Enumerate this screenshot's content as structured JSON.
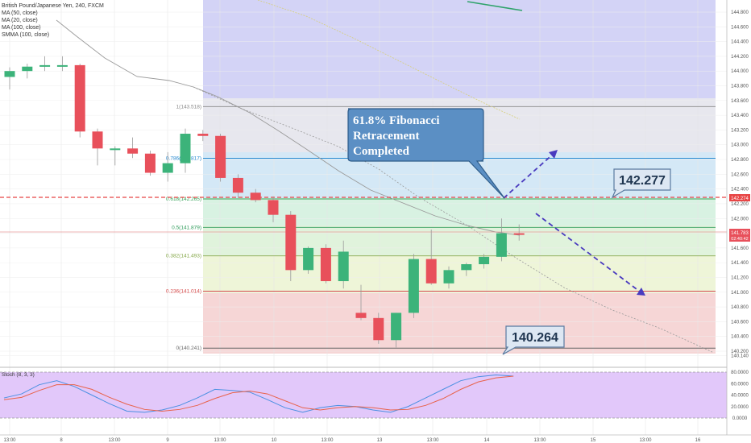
{
  "legend": {
    "symbol": "British Pound/Japanese Yen, 240, FXCM",
    "ma50": "MA (50, close)",
    "ma20": "MA (20, close)",
    "ma100": "MA (100, close)",
    "smma": "SMMA (100, close)"
  },
  "stoch_label": "Stoch (8, 3, 3)",
  "callout": {
    "line1": "61.8% Fibonacci",
    "line2": "Retracement",
    "line3": "Completed"
  },
  "annotations": {
    "level_high": "142.277",
    "level_low": "140.264"
  },
  "price_tags": {
    "red_line": "142.274",
    "current_price": "141.783",
    "countdown": "02:40:42"
  },
  "fib_levels": [
    {
      "label": "1(143.518)",
      "value": 143.518,
      "color": "#888888"
    },
    {
      "label": "0.786(142.817)",
      "value": 142.817,
      "color": "#2a8bd1"
    },
    {
      "label": "0.618(142.265)",
      "value": 142.265,
      "color": "#3aa45c"
    },
    {
      "label": "0.5(141.879)",
      "value": 141.879,
      "color": "#2e9b5a"
    },
    {
      "label": "0.382(141.493)",
      "value": 141.493,
      "color": "#86a84a"
    },
    {
      "label": "0.236(141.014)",
      "value": 141.014,
      "color": "#d64b4b"
    },
    {
      "label": "0(140.241)",
      "value": 140.241,
      "color": "#666666"
    }
  ],
  "price_axis_labels": [
    "144.800",
    "144.600",
    "144.400",
    "144.200",
    "144.000",
    "143.800",
    "143.600",
    "143.400",
    "143.200",
    "143.000",
    "142.800",
    "142.600",
    "142.400",
    "142.200",
    "142.000",
    "141.800",
    "141.600",
    "141.400",
    "141.200",
    "141.000",
    "140.800",
    "140.600",
    "140.400",
    "140.200",
    "140.140"
  ],
  "stoch_axis_labels": [
    "80.0000",
    "60.0000",
    "40.0000",
    "20.0000",
    "0.0000"
  ],
  "time_axis_labels": [
    "13:00",
    "8",
    "13:00",
    "9",
    "13:00",
    "10",
    "13:00",
    "13",
    "13:00",
    "14",
    "13:00",
    "15",
    "13:00",
    "16"
  ],
  "colors": {
    "up": "#3cb37a",
    "down": "#e8505b",
    "arrow": "#4a3bbf",
    "callout_bg": "#5b8fc4",
    "callout_border": "#2f5d8a",
    "box_bg": "#dde7f3",
    "box_border": "#5a7aa0",
    "red_dashed": "#e84545",
    "stoch_bg": "#e2c8fa"
  },
  "chart_data": {
    "type": "candlestick",
    "title": "British Pound/Japanese Yen, 240, FXCM",
    "ylim": [
      140.14,
      144.9
    ],
    "stoch_ylim": [
      0,
      80
    ],
    "candles": [
      {
        "o": 143.92,
        "h": 144.05,
        "l": 143.75,
        "c": 144.0
      },
      {
        "o": 144.0,
        "h": 144.1,
        "l": 143.9,
        "c": 144.06
      },
      {
        "o": 144.06,
        "h": 144.2,
        "l": 144.0,
        "c": 144.08
      },
      {
        "o": 144.08,
        "h": 144.2,
        "l": 144.0,
        "c": 144.08
      },
      {
        "o": 144.08,
        "h": 144.1,
        "l": 143.1,
        "c": 143.18
      },
      {
        "o": 143.18,
        "h": 143.22,
        "l": 142.72,
        "c": 142.95
      },
      {
        "o": 142.95,
        "h": 142.98,
        "l": 142.72,
        "c": 142.95
      },
      {
        "o": 142.95,
        "h": 143.1,
        "l": 142.82,
        "c": 142.88
      },
      {
        "o": 142.88,
        "h": 142.92,
        "l": 142.58,
        "c": 142.62
      },
      {
        "o": 142.62,
        "h": 142.9,
        "l": 142.5,
        "c": 142.75
      },
      {
        "o": 142.75,
        "h": 143.22,
        "l": 142.62,
        "c": 143.15
      },
      {
        "o": 143.15,
        "h": 143.2,
        "l": 143.05,
        "c": 143.12
      },
      {
        "o": 143.12,
        "h": 143.15,
        "l": 142.5,
        "c": 142.55
      },
      {
        "o": 142.55,
        "h": 142.6,
        "l": 142.28,
        "c": 142.35
      },
      {
        "o": 142.35,
        "h": 142.4,
        "l": 142.22,
        "c": 142.25
      },
      {
        "o": 142.25,
        "h": 142.3,
        "l": 141.95,
        "c": 142.05
      },
      {
        "o": 142.05,
        "h": 142.1,
        "l": 141.15,
        "c": 141.3
      },
      {
        "o": 141.3,
        "h": 141.62,
        "l": 141.25,
        "c": 141.6
      },
      {
        "o": 141.6,
        "h": 141.65,
        "l": 141.12,
        "c": 141.15
      },
      {
        "o": 141.15,
        "h": 141.7,
        "l": 141.05,
        "c": 141.55
      },
      {
        "o": 140.72,
        "h": 141.1,
        "l": 140.62,
        "c": 140.65
      },
      {
        "o": 140.65,
        "h": 140.72,
        "l": 140.3,
        "c": 140.35
      },
      {
        "o": 140.35,
        "h": 140.72,
        "l": 140.25,
        "c": 140.72
      },
      {
        "o": 140.72,
        "h": 141.52,
        "l": 140.65,
        "c": 141.45
      },
      {
        "o": 141.45,
        "h": 141.85,
        "l": 141.1,
        "c": 141.12
      },
      {
        "o": 141.12,
        "h": 141.35,
        "l": 141.05,
        "c": 141.3
      },
      {
        "o": 141.3,
        "h": 141.4,
        "l": 141.22,
        "c": 141.38
      },
      {
        "o": 141.38,
        "h": 141.52,
        "l": 141.32,
        "c": 141.48
      },
      {
        "o": 141.48,
        "h": 142.0,
        "l": 141.42,
        "c": 141.8
      },
      {
        "o": 141.8,
        "h": 141.92,
        "l": 141.7,
        "c": 141.78
      }
    ],
    "stoch_k": [
      35,
      42,
      58,
      65,
      55,
      40,
      25,
      12,
      10,
      14,
      22,
      35,
      50,
      48,
      45,
      32,
      18,
      10,
      18,
      22,
      20,
      14,
      10,
      20,
      35,
      50,
      65,
      72,
      75,
      73
    ],
    "stoch_d": [
      32,
      36,
      48,
      58,
      58,
      50,
      36,
      24,
      15,
      12,
      15,
      22,
      34,
      44,
      47,
      42,
      30,
      18,
      14,
      18,
      20,
      18,
      14,
      15,
      22,
      34,
      50,
      63,
      70,
      73
    ]
  }
}
